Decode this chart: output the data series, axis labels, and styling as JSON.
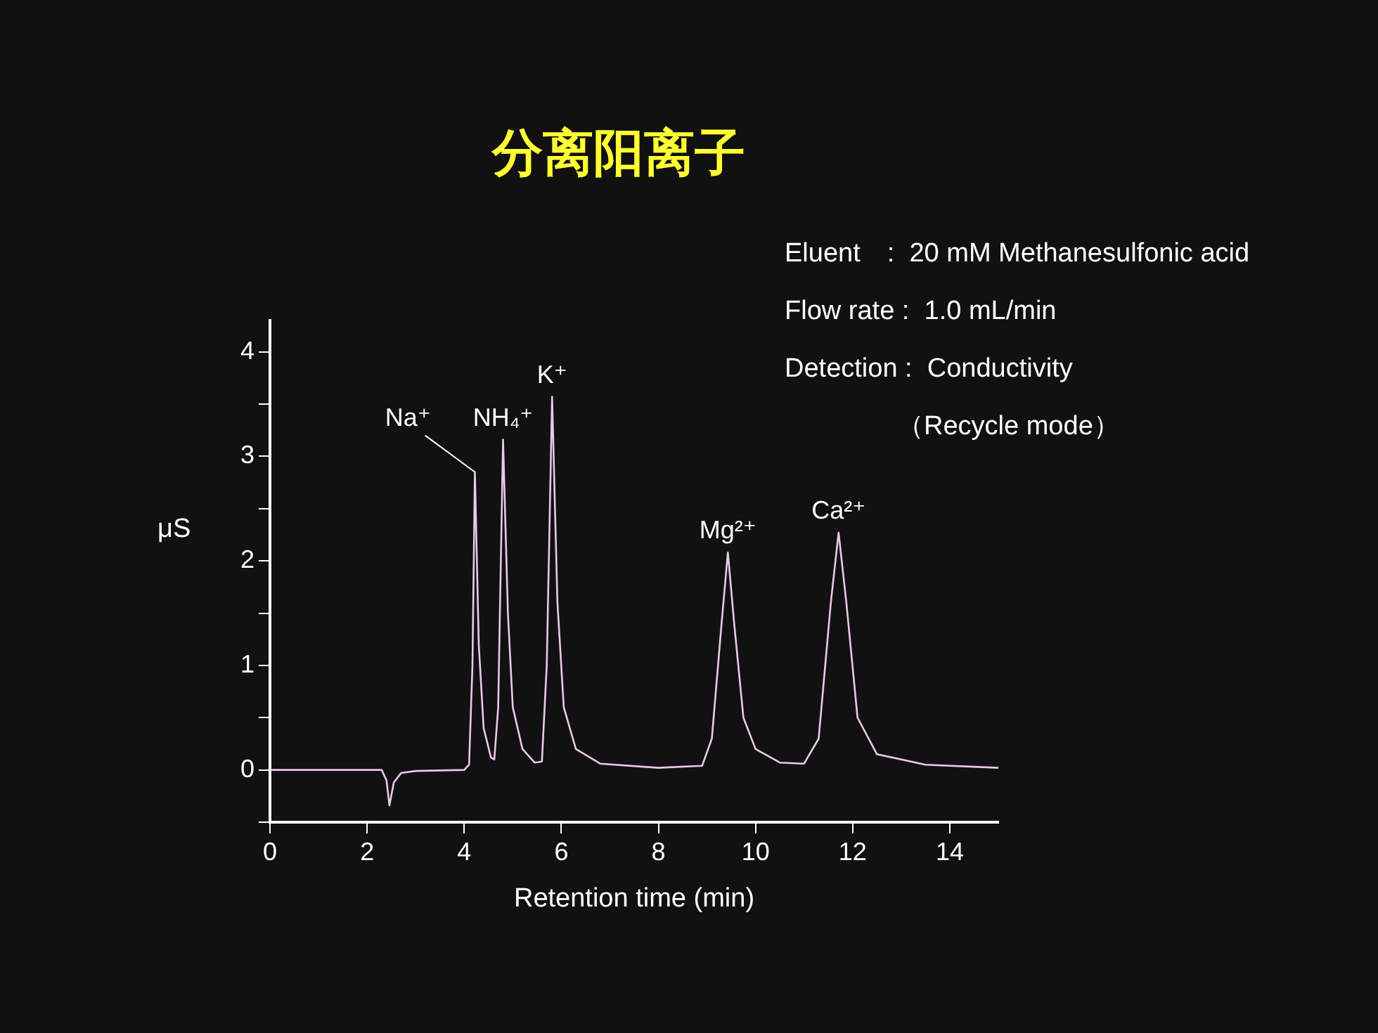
{
  "chart_data": {
    "type": "line",
    "title": "分离阳离子",
    "xlabel": "Retention time (min)",
    "ylabel": "μS",
    "x": [
      0,
      2.3,
      2.4,
      2.46,
      2.55,
      2.7,
      3.0,
      4.0,
      4.1,
      4.17,
      4.22,
      4.3,
      4.4,
      4.55,
      4.62,
      4.7,
      4.8,
      4.9,
      5.0,
      5.2,
      5.45,
      5.6,
      5.7,
      5.81,
      5.92,
      6.05,
      6.3,
      6.8,
      8.0,
      8.9,
      9.1,
      9.3,
      9.43,
      9.56,
      9.75,
      10.0,
      10.5,
      11.0,
      11.3,
      11.55,
      11.71,
      11.87,
      12.1,
      12.5,
      13.5,
      15
    ],
    "series": [
      {
        "color": "#ecc8ec",
        "values": [
          0,
          0,
          -0.1,
          -0.34,
          -0.12,
          -0.03,
          -0.01,
          0,
          0.05,
          1.0,
          2.85,
          1.2,
          0.4,
          0.12,
          0.1,
          0.6,
          3.16,
          1.5,
          0.6,
          0.2,
          0.07,
          0.08,
          1.0,
          3.57,
          1.6,
          0.6,
          0.2,
          0.06,
          0.02,
          0.04,
          0.3,
          1.4,
          2.08,
          1.4,
          0.5,
          0.2,
          0.07,
          0.06,
          0.3,
          1.6,
          2.27,
          1.6,
          0.5,
          0.15,
          0.05,
          0.02
        ]
      }
    ],
    "xlim": [
      0,
      15
    ],
    "xticks": [
      0,
      2,
      4,
      6,
      8,
      10,
      12,
      14
    ],
    "ylim": [
      -0.5,
      4.3
    ],
    "yticks": [
      {
        "value": -0.5,
        "label": null
      },
      0,
      {
        "value": 0.5,
        "label": null
      },
      1,
      {
        "value": 1.5,
        "label": null
      },
      2,
      {
        "value": 2.5,
        "label": null
      },
      3,
      {
        "value": 3.5,
        "label": null
      },
      4
    ],
    "grid": false,
    "legend": false,
    "marker": "none",
    "line_style": "solid",
    "annotations": [
      {
        "text": "Na⁺",
        "x": 4.22,
        "y": 2.85
      },
      {
        "text": "NH₄⁺",
        "x": 4.8,
        "y": 3.16
      },
      {
        "text": "K⁺",
        "x": 5.81,
        "y": 3.57
      },
      {
        "text": "Mg²⁺",
        "x": 9.43,
        "y": 2.08
      },
      {
        "text": "Ca²⁺",
        "x": 11.71,
        "y": 2.27
      },
      "Eluent　:  20 mM Methanesulfonic acid",
      "Flow rate :  1.0 mL/min",
      "Detection :  Conductivity",
      "（Recycle mode）"
    ]
  }
}
